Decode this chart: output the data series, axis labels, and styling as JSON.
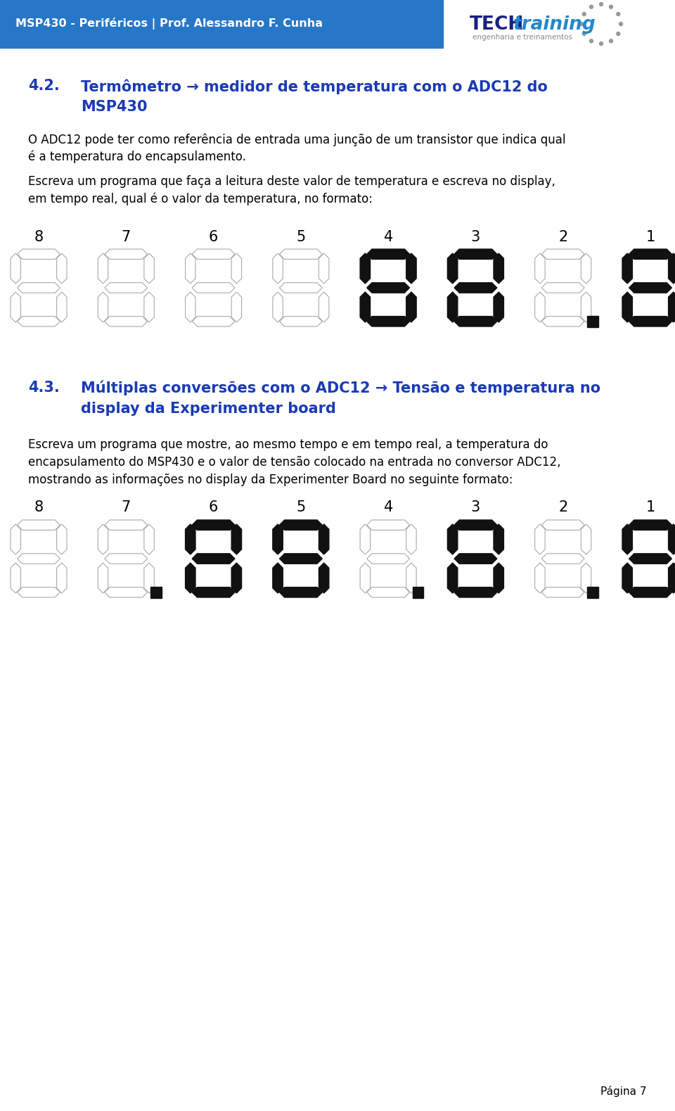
{
  "header_bg_color": "#2777c8",
  "header_text": "MSP430 - Periféricos | Prof. Alessandro F. Cunha",
  "header_text_color": "#ffffff",
  "page_bg": "#ffffff",
  "title_blue": "#1a3ab5",
  "body_text_color": "#000000",
  "page_label": "Página 7",
  "seg_labels1": [
    8,
    7,
    6,
    5,
    4,
    3,
    2,
    1
  ],
  "seg_active1": [
    false,
    false,
    false,
    false,
    true,
    true,
    false,
    true
  ],
  "seg_dot1": [
    false,
    false,
    false,
    false,
    false,
    false,
    true,
    false
  ],
  "seg_active2": [
    false,
    false,
    true,
    true,
    false,
    true,
    false,
    true
  ],
  "seg_dot2": [
    false,
    true,
    false,
    false,
    true,
    false,
    true,
    false
  ]
}
